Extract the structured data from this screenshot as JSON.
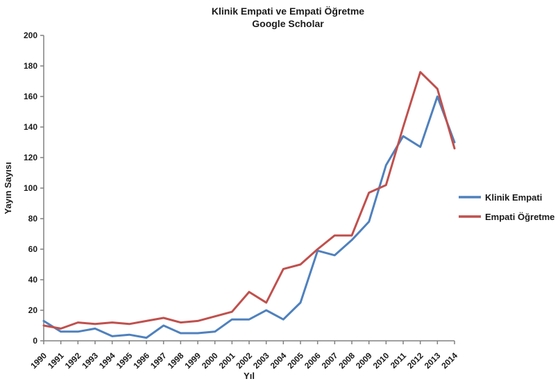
{
  "title": {
    "line1": "Klinik Empati ve Empati Öğretme",
    "line2": "Google Scholar"
  },
  "chart_data": {
    "type": "line",
    "title": "Klinik Empati ve Empati Öğretme",
    "subtitle": "Google Scholar",
    "xlabel": "Yıl",
    "ylabel": "Yayın Sayısı",
    "ylim": [
      0,
      200
    ],
    "ytick_step": 20,
    "grid": false,
    "legend_position": "right",
    "x": [
      1990,
      1991,
      1992,
      1993,
      1994,
      1995,
      1996,
      1997,
      1998,
      1999,
      2000,
      2001,
      2002,
      2003,
      2004,
      2005,
      2006,
      2007,
      2008,
      2009,
      2010,
      2011,
      2012,
      2013,
      2014
    ],
    "series": [
      {
        "name": "Klinik Empati",
        "color": "#4F81BD",
        "values": [
          13,
          6,
          6,
          8,
          3,
          4,
          2,
          10,
          5,
          5,
          6,
          14,
          14,
          20,
          14,
          25,
          59,
          56,
          66,
          78,
          115,
          134,
          127,
          160,
          130
        ]
      },
      {
        "name": "Empati Öğretme",
        "color": "#C0504D",
        "values": [
          10,
          8,
          12,
          11,
          12,
          11,
          13,
          15,
          12,
          13,
          16,
          19,
          32,
          25,
          47,
          50,
          60,
          69,
          69,
          97,
          102,
          140,
          176,
          165,
          126
        ]
      }
    ]
  },
  "style": {
    "axis_color": "#808080",
    "text_color": "#1a1a1a"
  }
}
